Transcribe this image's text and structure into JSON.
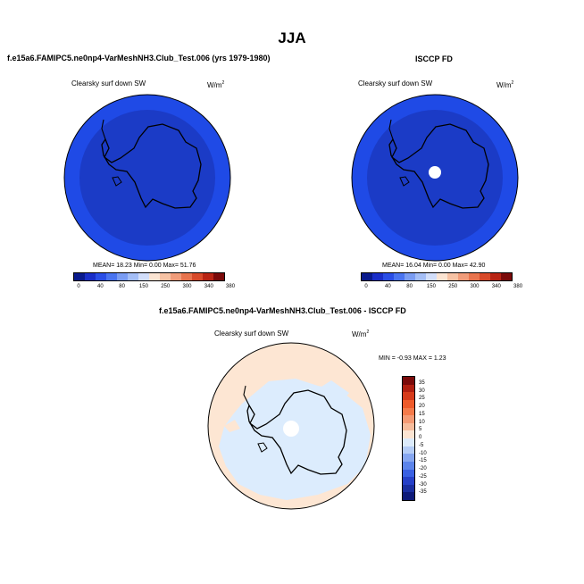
{
  "main_title": "JJA",
  "left_panel": {
    "title": "f.e15a6.FAMIPC5.ne0np4-VarMeshNH3.Club_Test.006 (yrs 1979-1980)",
    "variable": "Clearsky surf down SW",
    "units": "W/m",
    "units_exp": "2",
    "stats": "MEAN=  18.23  Min=   0.00  Max=  51.76"
  },
  "right_panel": {
    "title": "ISCCP FD",
    "variable": "Clearsky surf down SW",
    "units": "W/m",
    "units_exp": "2",
    "stats": "MEAN=  16.04  Min=   0.00  Max=  42.90"
  },
  "bottom_panel": {
    "title": "f.e15a6.FAMIPC5.ne0np4-VarMeshNH3.Club_Test.006 - ISCCP FD",
    "variable": "Clearsky surf down SW",
    "units": "W/m",
    "units_exp": "2",
    "minmax": "MIN =  -0.93 MAX =   1.23"
  },
  "colorbar_abs": {
    "colors": [
      "#0a1a8c",
      "#1a2ec8",
      "#2a4ee6",
      "#4a74f0",
      "#7a9cf2",
      "#a4bef6",
      "#d2defa",
      "#fbe4d2",
      "#f6c2a4",
      "#f09c7a",
      "#e8744e",
      "#d84a2a",
      "#b82414",
      "#7a0a0a"
    ],
    "labels": [
      "0",
      "40",
      "80",
      "150",
      "250",
      "300",
      "340",
      "380"
    ]
  },
  "colorbar_diff": {
    "colors": [
      "#7a0a0a",
      "#b01e10",
      "#d63a1a",
      "#ee5a2a",
      "#f47a4a",
      "#f49a74",
      "#f6bc9c",
      "#fbe4d2",
      "#dcebfb",
      "#b4ccf6",
      "#86a6f0",
      "#5c84ea",
      "#3a60e2",
      "#2640c8",
      "#1a2ea0",
      "#0e1a78"
    ],
    "labels": [
      "35",
      "30",
      "25",
      "20",
      "15",
      "10",
      "5",
      "0",
      "-5",
      "-10",
      "-15",
      "-20",
      "-25",
      "-30",
      "-35"
    ]
  },
  "map_colors": {
    "outer_ring": "#1f4ae6",
    "inner_disk": "#1b3bc6",
    "diff_blue": "#dcecfd",
    "diff_peach": "#fde6d3"
  }
}
